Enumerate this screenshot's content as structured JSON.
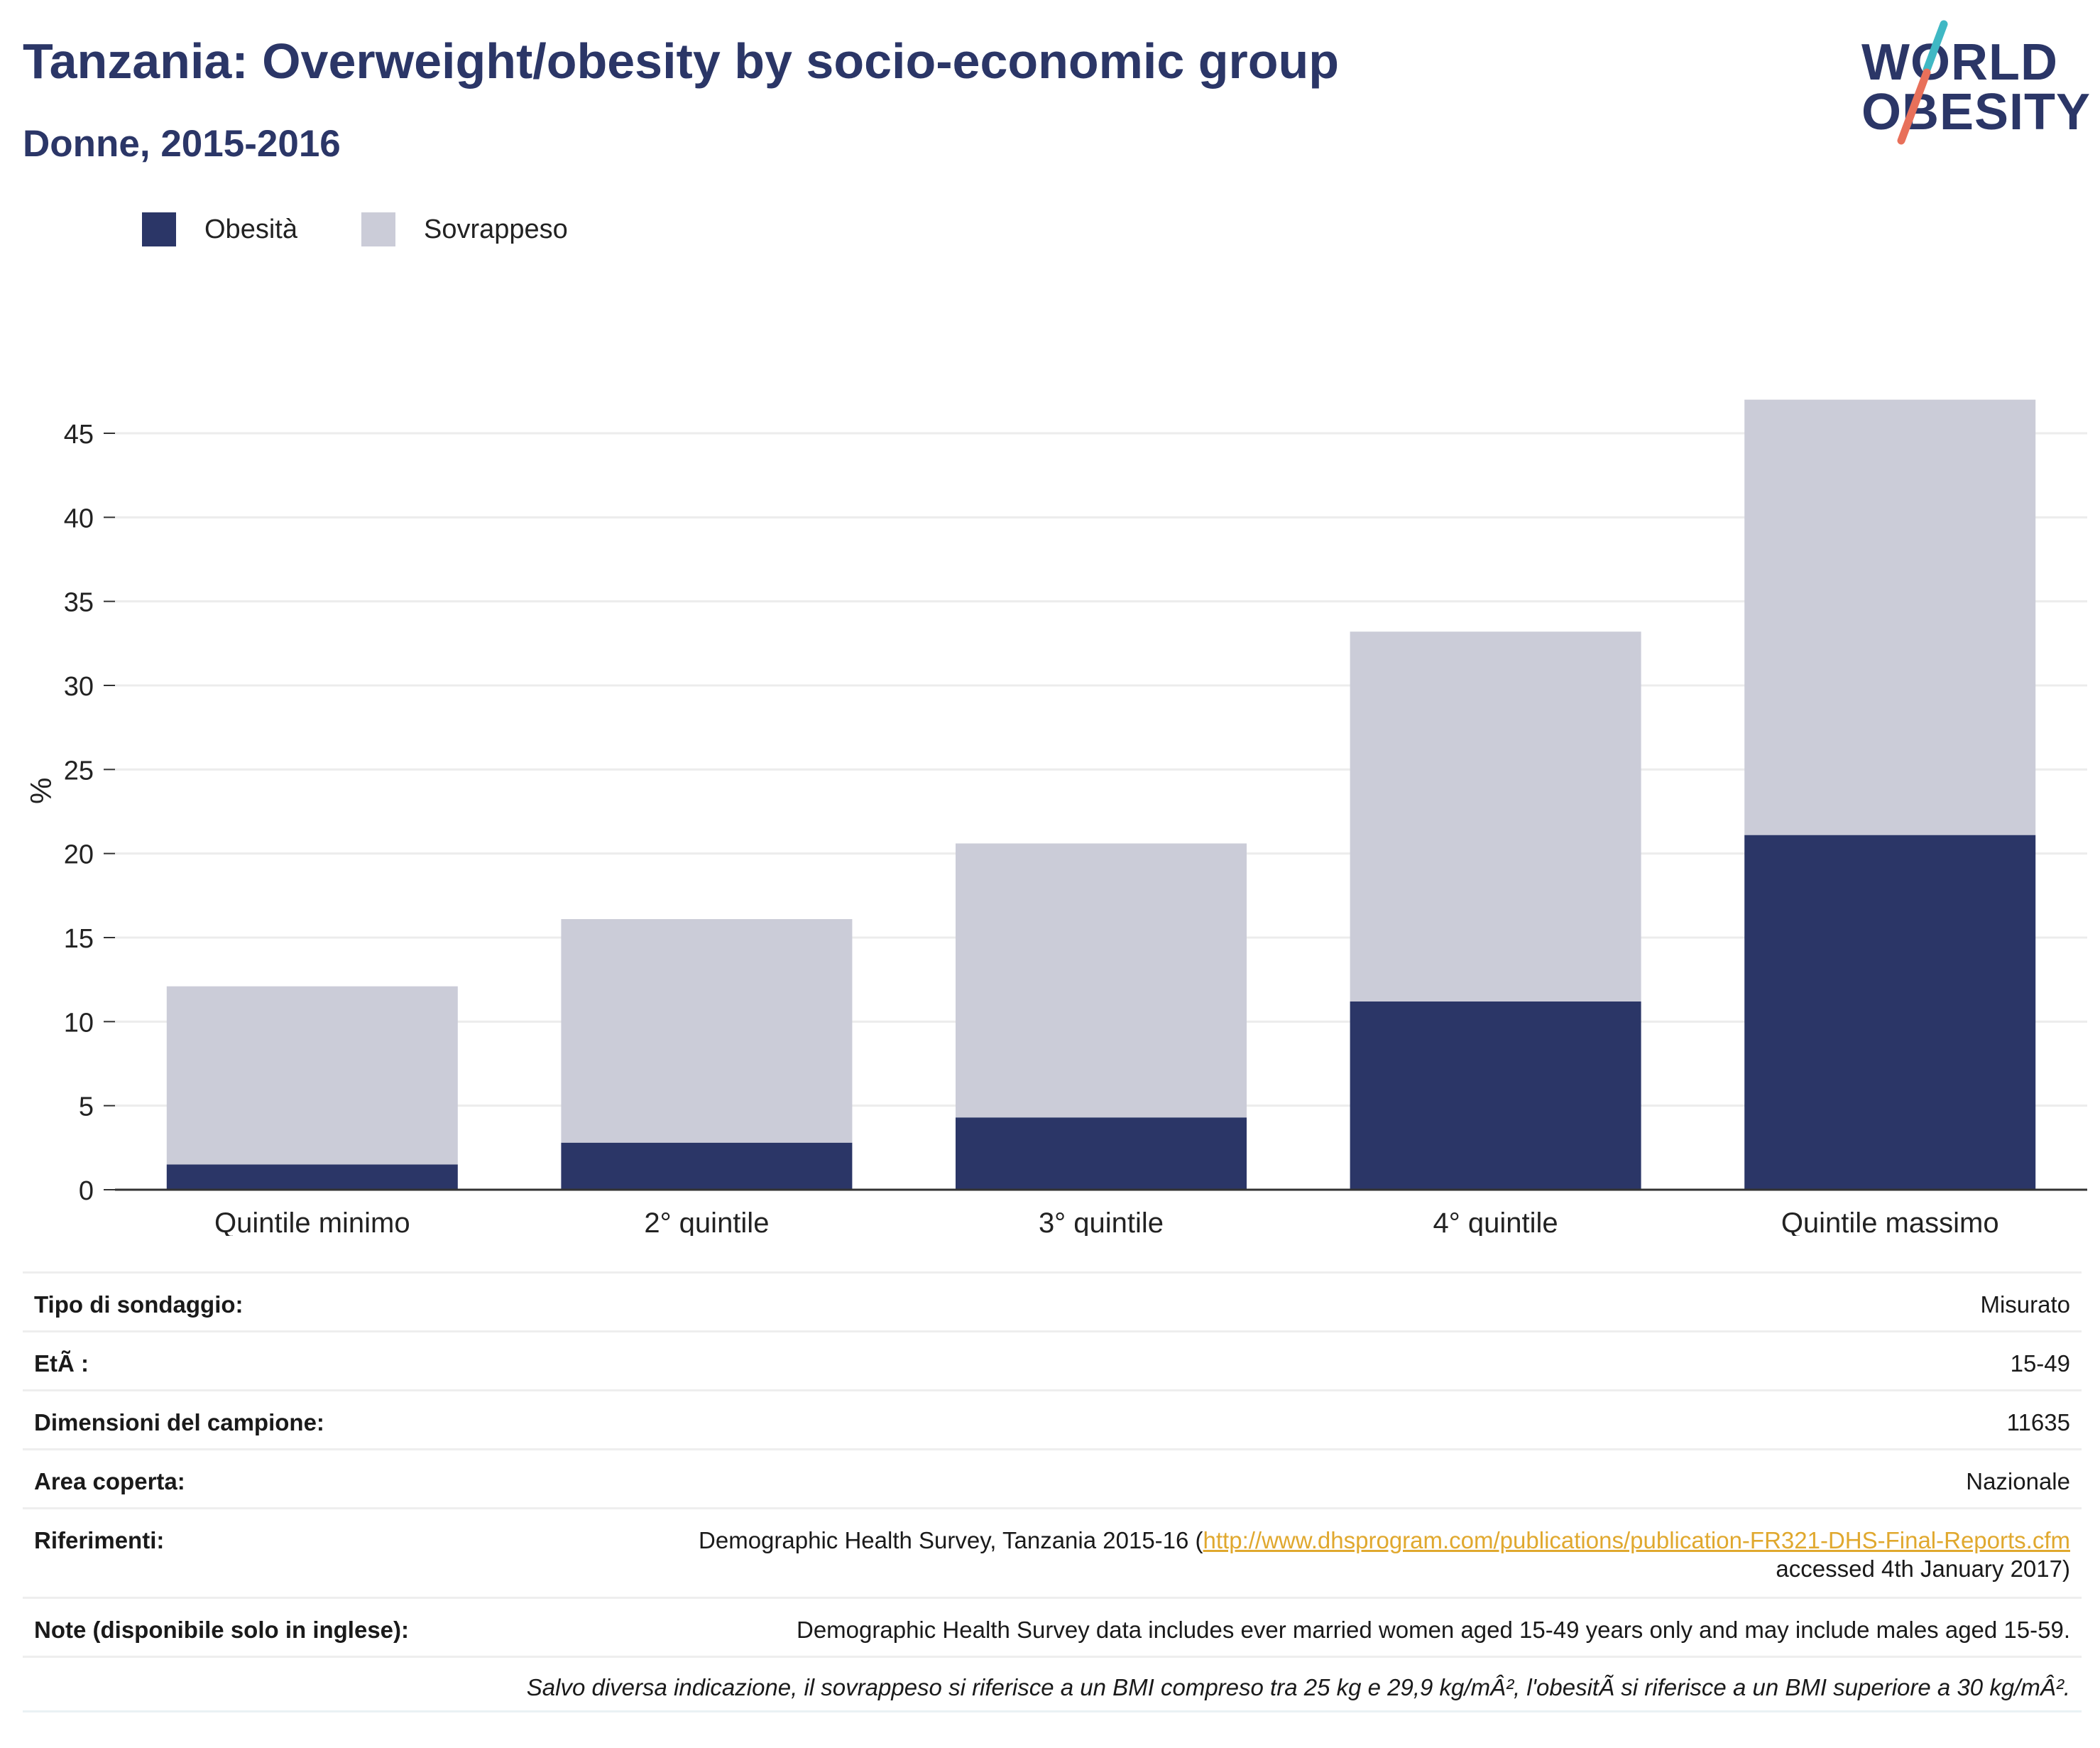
{
  "header": {
    "title": "Tanzania: Overweight/obesity by socio-economic group",
    "subtitle": "Donne, 2015-2016"
  },
  "logo": {
    "line1": "WORLD",
    "line2": "OBESITY",
    "accent_colors": [
      "#3fb8c4",
      "#e8705a"
    ]
  },
  "legend": [
    {
      "label": "Obesità",
      "color": "#2b3667"
    },
    {
      "label": "Sovrappeso",
      "color": "#cbccd8"
    }
  ],
  "chart_data": {
    "type": "bar",
    "stacked": true,
    "categories": [
      "Quintile minimo",
      "2° quintile",
      "3° quintile",
      "4° quintile",
      "Quintile massimo"
    ],
    "series": [
      {
        "name": "Obesità",
        "color": "#2b3667",
        "values": [
          1.5,
          2.8,
          4.3,
          11.2,
          21.1
        ]
      },
      {
        "name": "Sovrappeso",
        "color": "#cbccd8",
        "values": [
          10.6,
          13.3,
          16.3,
          22.0,
          25.9
        ]
      }
    ],
    "totals": [
      12.1,
      16.1,
      20.6,
      33.2,
      47.0
    ],
    "ylabel": "%",
    "xlabel": "",
    "ylim": [
      0,
      49
    ],
    "yticks": [
      0,
      5,
      10,
      15,
      20,
      25,
      30,
      35,
      40,
      45
    ],
    "grid": true,
    "legend_position": "top-left"
  },
  "info": {
    "survey_type": {
      "label": "Tipo di sondaggio:",
      "value": "Misurato"
    },
    "age": {
      "label": "EtÃ :",
      "value": "15-49"
    },
    "sample_size": {
      "label": "Dimensioni del campione:",
      "value": "11635"
    },
    "area": {
      "label": "Area coperta:",
      "value": "Nazionale"
    },
    "references": {
      "label": "Riferimenti:",
      "prefix": "Demographic Health Survey, Tanzania 2015-16 (",
      "link": "http://www.dhsprogram.com/publications/publication-FR321-DHS-Final-Reports.cfm",
      "suffix": "accessed 4th January 2017)"
    },
    "notes": {
      "label": "Note (disponibile solo in inglese):",
      "value": "Demographic Health Survey data includes ever married women aged 15-49 years only and may include males aged 15-59."
    },
    "footnote": "Salvo diversa indicazione, il sovrappeso si riferisce a un BMI compreso tra 25 kg e 29,9 kg/mÂ², l'obesitÃ  si riferisce a un BMI superiore a 30 kg/mÂ²."
  }
}
